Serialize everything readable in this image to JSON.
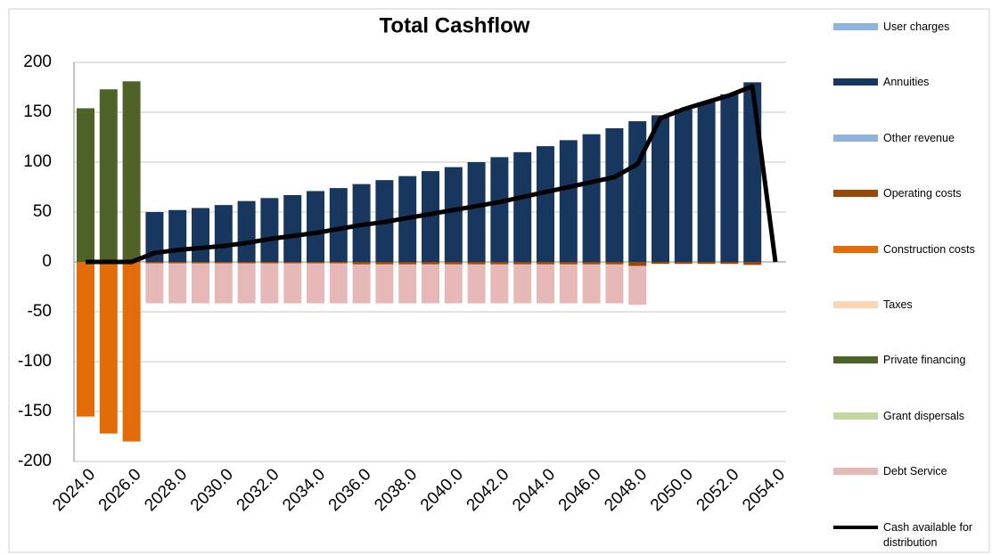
{
  "chart_data": {
    "type": "bar",
    "stacked": true,
    "title": "Total Cashflow",
    "categories": [
      "2024.0",
      null,
      "2026.0",
      null,
      "2028.0",
      null,
      "2030.0",
      null,
      "2032.0",
      null,
      "2034.0",
      null,
      "2036.0",
      null,
      "2038.0",
      null,
      "2040.0",
      null,
      "2042.0",
      null,
      "2044.0",
      null,
      "2046.0",
      null,
      "2048.0",
      null,
      "2050.0",
      null,
      "2052.0",
      null,
      "2054.0"
    ],
    "ylim": [
      -200,
      200
    ],
    "yticks": [
      -200,
      -150,
      -100,
      -50,
      0,
      50,
      100,
      150,
      200
    ],
    "grid": true,
    "legend": "right",
    "series": [
      {
        "name": "User charges",
        "color": "#8db3e2",
        "values": [
          0,
          0,
          0,
          0,
          0,
          0,
          0,
          0,
          0,
          0,
          0,
          0,
          0,
          0,
          0,
          0,
          0,
          0,
          0,
          0,
          0,
          0,
          0,
          0,
          0,
          0,
          0,
          0,
          0,
          0,
          0
        ]
      },
      {
        "name": "Annuities",
        "color": "#17375e",
        "values": [
          0,
          0,
          0,
          50,
          52,
          54,
          57,
          61,
          64,
          67,
          71,
          74,
          78,
          82,
          86,
          91,
          95,
          100,
          105,
          110,
          116,
          122,
          128,
          134,
          141,
          147,
          153,
          160,
          168,
          180,
          0
        ]
      },
      {
        "name": "Other revenue",
        "color": "#8db3e2",
        "values": [
          0,
          0,
          0,
          0,
          0,
          0,
          0,
          0,
          0,
          0,
          0,
          0,
          0,
          0,
          0,
          0,
          0,
          0,
          0,
          0,
          0,
          0,
          0,
          0,
          0,
          0,
          0,
          0,
          0,
          0,
          0
        ]
      },
      {
        "name": "Operating costs",
        "color": "#984807",
        "values": [
          0,
          0,
          0,
          -1.5,
          -1.5,
          -1.5,
          -1.5,
          -1.5,
          -1.5,
          -1.5,
          -1.5,
          -1.5,
          -2.5,
          -2.5,
          -2.5,
          -2.5,
          -2.5,
          -2.5,
          -2.5,
          -2.5,
          -2.5,
          -2.5,
          -2.5,
          -2.5,
          -4,
          -2,
          -2,
          -2,
          -2,
          -3,
          0
        ]
      },
      {
        "name": "Construction costs",
        "color": "#e36c09",
        "values": [
          -155,
          -172,
          -180,
          0,
          0,
          0,
          0,
          0,
          0,
          0,
          0,
          0,
          0,
          0,
          0,
          0,
          0,
          0,
          0,
          0,
          0,
          0,
          0,
          0,
          0,
          0,
          0,
          0,
          0,
          0,
          0
        ]
      },
      {
        "name": "Taxes",
        "color": "#fcd5b5",
        "values": [
          0,
          0,
          0,
          0,
          0,
          0,
          0,
          0,
          0,
          0,
          0,
          0,
          0,
          0,
          0,
          0,
          0,
          0,
          0,
          0,
          0,
          0,
          0,
          0,
          0,
          0,
          0,
          0,
          0,
          0,
          0
        ]
      },
      {
        "name": "Private financing",
        "color": "#4f6228",
        "values": [
          154,
          173,
          181,
          0,
          0,
          0,
          0,
          0,
          0,
          0,
          0,
          0,
          0,
          0,
          0,
          0,
          0,
          0,
          0,
          0,
          0,
          0,
          0,
          0,
          0,
          0,
          0,
          0,
          0,
          0,
          0
        ]
      },
      {
        "name": "Grant dispersals",
        "color": "#c3d69b",
        "values": [
          0,
          0,
          0,
          0,
          0,
          0,
          0,
          0,
          0,
          0,
          0,
          0,
          0,
          0,
          0,
          0,
          0,
          0,
          0,
          0,
          0,
          0,
          0,
          0,
          0,
          0,
          0,
          0,
          0,
          0,
          0
        ]
      },
      {
        "name": "Debt Service",
        "color": "#e6b9b8",
        "values": [
          0,
          0,
          0,
          -40,
          -40,
          -40,
          -40,
          -40,
          -40,
          -40,
          -40,
          -40,
          -39,
          -39,
          -39,
          -39,
          -39,
          -39,
          -39,
          -39,
          -39,
          -39,
          -39,
          -39,
          -39,
          0,
          0,
          0,
          0,
          0,
          0
        ]
      },
      {
        "name": "Cash available for distribution",
        "color": "#000000",
        "type": "line",
        "values": [
          0,
          0,
          0,
          9,
          12,
          14,
          16,
          19,
          23,
          26,
          29,
          33,
          37,
          40,
          44,
          48,
          52,
          56,
          60,
          65,
          70,
          75,
          80,
          85,
          98,
          144,
          153,
          160,
          167,
          176,
          0
        ]
      }
    ]
  }
}
